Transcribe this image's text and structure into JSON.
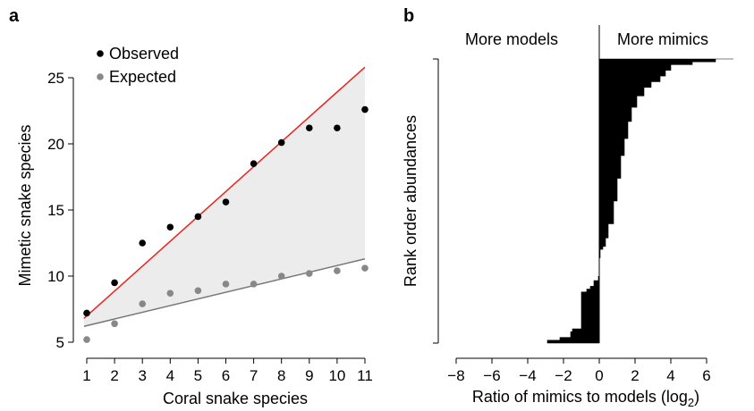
{
  "chart_data": [
    {
      "panel": "a",
      "type": "scatter",
      "xlabel": "Coral snake species",
      "ylabel": "Mimetic snake species",
      "xlim": [
        1,
        11
      ],
      "ylim": [
        5,
        27
      ],
      "xticks": [
        1,
        2,
        3,
        4,
        5,
        6,
        7,
        8,
        9,
        10,
        11
      ],
      "yticks": [
        5,
        10,
        15,
        20,
        25
      ],
      "legend": {
        "position": "top-left"
      },
      "series": [
        {
          "name": "Observed",
          "color": "#000000",
          "x": [
            1,
            2,
            3,
            4,
            5,
            6,
            7,
            8,
            9,
            10,
            11
          ],
          "y": [
            7.2,
            9.5,
            12.5,
            13.7,
            14.5,
            15.6,
            18.5,
            20.1,
            21.2,
            21.2,
            22.6
          ]
        },
        {
          "name": "Expected",
          "color": "#888888",
          "x": [
            1,
            2,
            3,
            4,
            5,
            6,
            7,
            8,
            9,
            10,
            11
          ],
          "y": [
            5.2,
            6.4,
            7.9,
            8.7,
            8.9,
            9.4,
            9.4,
            10.0,
            10.2,
            10.4,
            10.6
          ]
        }
      ],
      "lines": [
        {
          "color": "#e8231d",
          "from": [
            0.9,
            6.8
          ],
          "to": [
            11,
            25.8
          ]
        },
        {
          "color": "#777777",
          "from": [
            0.9,
            6.2
          ],
          "to": [
            11,
            11.3
          ]
        }
      ],
      "shaded_band": {
        "color": "#ececec"
      }
    },
    {
      "panel": "b",
      "type": "bar",
      "orientation": "horizontal-rank",
      "xlabel_prefix": "Ratio of mimics to models (log",
      "xlabel_sub": "2",
      "xlabel_suffix": ")",
      "ylabel": "Rank order abundances",
      "xlim": [
        -8,
        8
      ],
      "xticks": [
        -8,
        -6,
        -4,
        -2,
        0,
        2,
        4,
        6
      ],
      "headers": [
        "More models",
        "More mimics"
      ],
      "color": "#000000",
      "profile": [
        {
          "rank": 0.0,
          "value": -2.9
        },
        {
          "rank": 0.01,
          "value": -2.2
        },
        {
          "rank": 0.02,
          "value": -1.6
        },
        {
          "rank": 0.04,
          "value": -1.5
        },
        {
          "rank": 0.05,
          "value": -1.0
        },
        {
          "rank": 0.18,
          "value": -0.7
        },
        {
          "rank": 0.19,
          "value": -0.5
        },
        {
          "rank": 0.2,
          "value": -0.3
        },
        {
          "rank": 0.22,
          "value": -0.05
        },
        {
          "rank": 0.235,
          "value": 0.0
        },
        {
          "rank": 0.3,
          "value": 0.05
        },
        {
          "rank": 0.33,
          "value": 0.2
        },
        {
          "rank": 0.34,
          "value": 0.35
        },
        {
          "rank": 0.37,
          "value": 0.5
        },
        {
          "rank": 0.42,
          "value": 0.8
        },
        {
          "rank": 0.5,
          "value": 1.0
        },
        {
          "rank": 0.58,
          "value": 1.2
        },
        {
          "rank": 0.66,
          "value": 1.4
        },
        {
          "rank": 0.72,
          "value": 1.6
        },
        {
          "rank": 0.78,
          "value": 1.8
        },
        {
          "rank": 0.83,
          "value": 2.1
        },
        {
          "rank": 0.87,
          "value": 2.5
        },
        {
          "rank": 0.9,
          "value": 2.9
        },
        {
          "rank": 0.92,
          "value": 3.4
        },
        {
          "rank": 0.94,
          "value": 3.7
        },
        {
          "rank": 0.96,
          "value": 4.0
        },
        {
          "rank": 0.98,
          "value": 5.2
        },
        {
          "rank": 0.99,
          "value": 6.5
        },
        {
          "rank": 1.0,
          "value": 7.5
        }
      ]
    }
  ]
}
